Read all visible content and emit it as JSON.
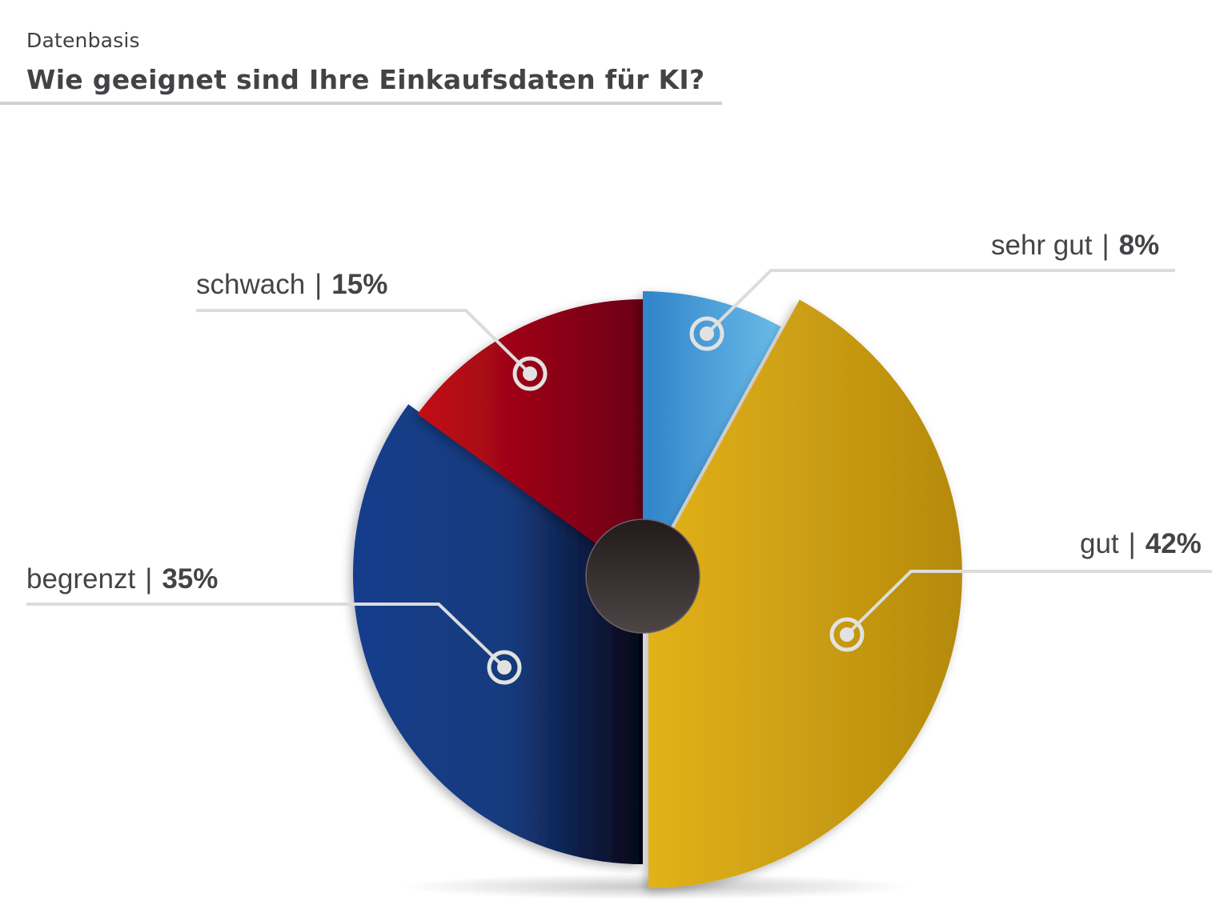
{
  "header": {
    "subtitle": "Datenbasis",
    "title": "Wie geeignet sind Ihre Einkaufsdaten für KI?"
  },
  "chart_data": {
    "type": "pie",
    "title": "Wie geeignet sind Ihre Einkaufsdaten für KI?",
    "subtitle": "Datenbasis",
    "categories": [
      "sehr gut",
      "gut",
      "begrenzt",
      "schwach"
    ],
    "values": [
      8,
      42,
      35,
      15
    ],
    "unit": "%",
    "colors": [
      "#4aa3e0",
      "#d6a81a",
      "#143c8a",
      "#b00a16"
    ],
    "center_disc_color": "#3a3234",
    "legend_position": "callout-labels"
  },
  "labels": [
    {
      "name": "sehr gut",
      "sep": "|",
      "pct": "8%"
    },
    {
      "name": "gut",
      "sep": "|",
      "pct": "42%"
    },
    {
      "name": "begrenzt",
      "sep": "|",
      "pct": "35%"
    },
    {
      "name": "schwach",
      "sep": "|",
      "pct": "15%"
    }
  ]
}
